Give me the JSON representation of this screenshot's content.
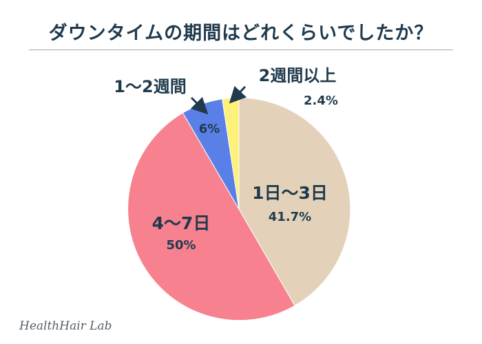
{
  "title": "ダウンタイムの期間はどれくらいでしたか？",
  "watermark": "HealthHair Lab",
  "chart_data": {
    "type": "pie",
    "title": "ダウンタイムの期間はどれくらいでしたか？",
    "slices": [
      {
        "label": "1日〜3日",
        "value": 41.7,
        "value_label": "41.7%",
        "color": "#e3d2b9"
      },
      {
        "label": "4〜7日",
        "value": 50,
        "value_label": "50%",
        "color": "#f7818e"
      },
      {
        "label": "1〜2週間",
        "value": 6,
        "value_label": "6%",
        "color": "#5a7fe6"
      },
      {
        "label": "2週間以上",
        "value": 2.4,
        "value_label": "2.4%",
        "color": "#fdf179"
      }
    ],
    "start_angle_deg": 0,
    "direction": "clockwise",
    "text_color": "#1f3a4d"
  }
}
